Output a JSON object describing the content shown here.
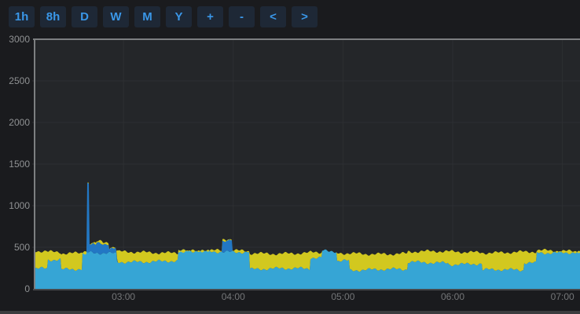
{
  "toolbar": {
    "buttons": [
      {
        "id": "1h",
        "label": "1h"
      },
      {
        "id": "8h",
        "label": "8h"
      },
      {
        "id": "day",
        "label": "D"
      },
      {
        "id": "week",
        "label": "W"
      },
      {
        "id": "month",
        "label": "M"
      },
      {
        "id": "year",
        "label": "Y"
      },
      {
        "id": "zoom-in",
        "label": "+"
      },
      {
        "id": "zoom-out",
        "label": "-"
      },
      {
        "id": "pan-left",
        "label": "<"
      },
      {
        "id": "pan-right",
        "label": ">"
      }
    ],
    "accent_color": "#3a97e8",
    "button_bg": "#1e2836"
  },
  "chart_data": {
    "type": "area",
    "stacked": true,
    "title": "",
    "legend": "none",
    "grid": true,
    "x_axis": {
      "unit": "time",
      "range_hours": [
        2.19,
        7.16
      ],
      "ticks": [
        {
          "t": 3,
          "label": "03:00"
        },
        {
          "t": 4,
          "label": "04:00"
        },
        {
          "t": 5,
          "label": "05:00"
        },
        {
          "t": 6,
          "label": "06:00"
        },
        {
          "t": 7,
          "label": "07:00"
        }
      ]
    },
    "y_axis": {
      "range": [
        0,
        3000
      ],
      "ticks": [
        {
          "v": 0,
          "label": "0"
        },
        {
          "v": 500,
          "label": "500"
        },
        {
          "v": 1000,
          "label": "1000"
        },
        {
          "v": 1500,
          "label": "1500"
        },
        {
          "v": 2000,
          "label": "2000"
        },
        {
          "v": 2500,
          "label": "2500"
        },
        {
          "v": 3000,
          "label": "3000"
        }
      ]
    },
    "series": [
      {
        "name": "series-cyan",
        "color": "#36a5d5",
        "interp": "step",
        "points": [
          [
            2.19,
            250
          ],
          [
            2.31,
            350
          ],
          [
            2.43,
            230
          ],
          [
            2.62,
            430
          ],
          [
            2.94,
            330
          ],
          [
            3.5,
            450
          ],
          [
            4.15,
            240
          ],
          [
            4.7,
            375
          ],
          [
            4.81,
            460
          ],
          [
            4.94,
            345
          ],
          [
            5.06,
            230
          ],
          [
            5.59,
            320
          ],
          [
            5.96,
            300
          ],
          [
            6.27,
            225
          ],
          [
            6.65,
            315
          ],
          [
            6.76,
            440
          ]
        ]
      },
      {
        "name": "series-blue-peak",
        "color": "#2277c4",
        "interp": "step",
        "points": [
          [
            2.19,
            0
          ],
          [
            2.665,
            845
          ],
          [
            2.685,
            110
          ],
          [
            2.75,
            130
          ],
          [
            2.81,
            120
          ],
          [
            2.87,
            60
          ],
          [
            2.93,
            15
          ],
          [
            2.945,
            0
          ],
          [
            3.9,
            135
          ],
          [
            3.99,
            0
          ]
        ]
      },
      {
        "name": "series-yellow",
        "color": "#d2c81f",
        "interp": "step",
        "points": [
          [
            2.19,
            205
          ],
          [
            2.31,
            100
          ],
          [
            2.43,
            205
          ],
          [
            2.62,
            5
          ],
          [
            2.94,
            110
          ],
          [
            3.5,
            5
          ],
          [
            4.15,
            190
          ],
          [
            4.7,
            60
          ],
          [
            4.81,
            0
          ],
          [
            4.94,
            80
          ],
          [
            5.06,
            195
          ],
          [
            5.59,
            125
          ],
          [
            5.96,
            145
          ],
          [
            6.27,
            215
          ],
          [
            6.65,
            125
          ],
          [
            6.76,
            15
          ]
        ]
      }
    ]
  },
  "palette": {
    "page_bg": "#1a1b1e",
    "plot_bg": "#242629",
    "grid_line": "#2d2f32",
    "frame_line": "#7d7f81",
    "baseline": "#55575a",
    "y_label": "#8f9193",
    "x_label": "#747678",
    "bottom_strip": "#3b3c3e"
  }
}
